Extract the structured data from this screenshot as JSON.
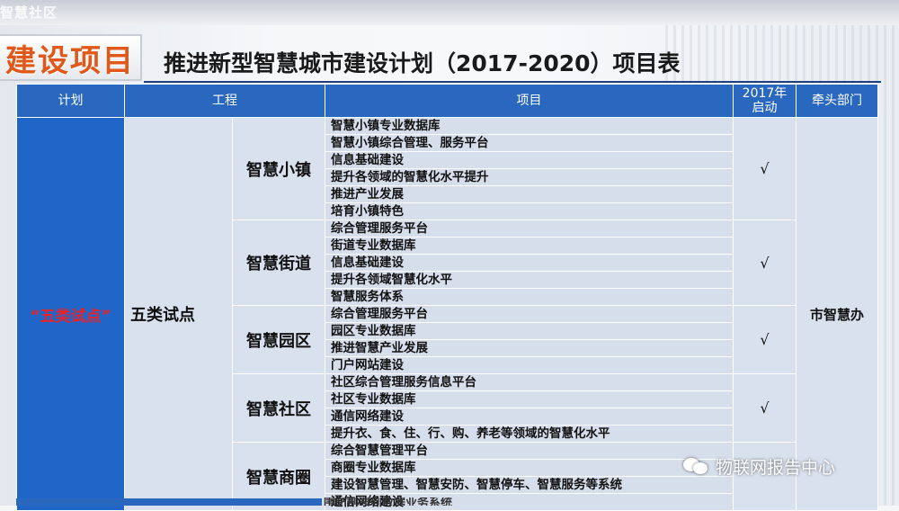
{
  "ghost_header": "智慧社区",
  "badge": "建设项目",
  "title": "推进新型智慧城市建设计划（2017-2020）项目表",
  "table": {
    "headers": {
      "plan": "计划",
      "engineering": "工程",
      "project": "项目",
      "start_2017": "2017年\n启动",
      "lead_dept": "牵头部门"
    },
    "plan": "“五类试点”",
    "engineering": "五类试点",
    "lead_dept": "市智慧办",
    "groups": [
      {
        "name": "智慧小镇",
        "check": "√",
        "items": [
          "智慧小镇专业数据库",
          "智慧小镇综合管理、服务平台",
          "信息基础建设",
          "提升各领域的智慧化水平提升",
          "推进产业发展",
          "培育小镇特色"
        ]
      },
      {
        "name": "智慧街道",
        "check": "√",
        "items": [
          "综合管理服务平台",
          "街道专业数据库",
          "信息基础建设",
          "提升各领域智慧化水平",
          "智慧服务体系"
        ]
      },
      {
        "name": "智慧园区",
        "check": "√",
        "items": [
          "综合管理服务平台",
          "园区专业数据库",
          "推进智慧产业发展",
          "门户网站建设"
        ]
      },
      {
        "name": "智慧社区",
        "check": "√",
        "items": [
          "社区综合管理服务信息平台",
          "社区专业数据库",
          "通信网络建设",
          "提升衣、食、住、行、购、养老等领域的智慧化水平"
        ]
      },
      {
        "name": "智慧商圈",
        "check": "",
        "items": [
          "综合智慧管理平台",
          "商圈专业数据库",
          "建设智慧管理、智慧安防、智慧停车、智慧服务等系统",
          "通信网络建设"
        ]
      }
    ],
    "cut_off_item": "围防刑园到数据业务系统"
  },
  "watermark": "物联网报告中心",
  "colors": {
    "header_blue": "#2a68bf",
    "plan_blue": "#1f66c8",
    "plan_red": "#e5242a",
    "badge_orange": "#e0581a",
    "cell_gray": "#d9e1ee"
  }
}
